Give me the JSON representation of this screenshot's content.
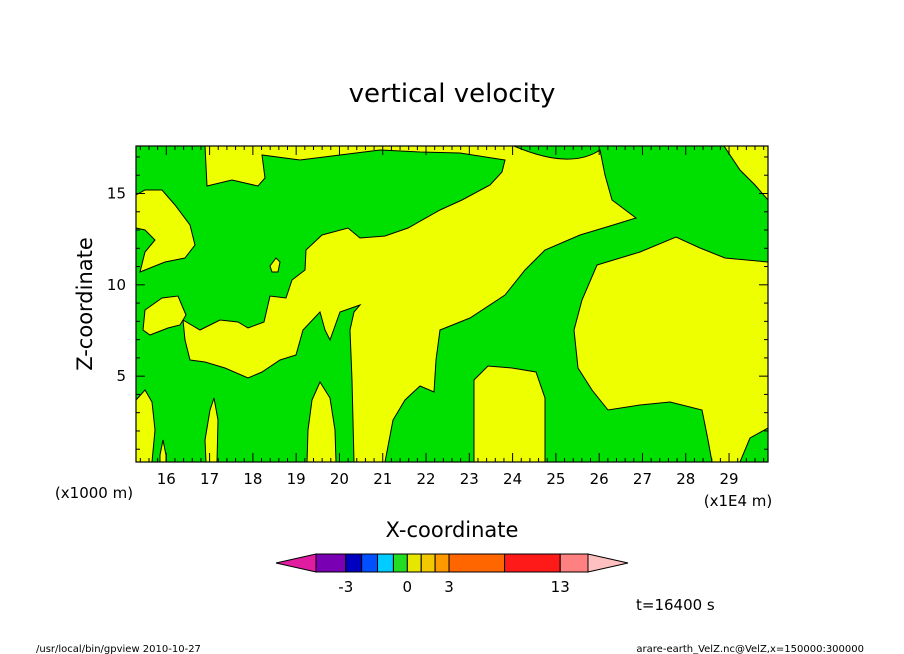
{
  "chart_data": {
    "type": "heatmap",
    "title": "vertical velocity",
    "xlabel": "X-coordinate",
    "ylabel": "Z-coordinate",
    "x_unit_label": "(x1E4 m)",
    "y_unit_label": "(x1000 m)",
    "xlim": [
      15.3,
      29.9
    ],
    "ylim": [
      0.3,
      17.6
    ],
    "x_ticks": [
      "16",
      "17",
      "18",
      "19",
      "20",
      "21",
      "22",
      "23",
      "24",
      "25",
      "26",
      "27",
      "28",
      "29"
    ],
    "y_ticks": [
      "5",
      "10",
      "15"
    ],
    "colorbar": {
      "colors": [
        "#e01ca0",
        "#7a00b4",
        "#0000c0",
        "#0050ff",
        "#00ccff",
        "#22dd22",
        "#e6e600",
        "#f2c800",
        "#ff9900",
        "#ff6600",
        "#ff1a1a",
        "#ff8080",
        "#ffc0c0"
      ],
      "labels": [
        "-3",
        "0",
        "3",
        "13"
      ],
      "label_values": [
        -3,
        0,
        3,
        13
      ]
    },
    "fields": {
      "background": "#00e000",
      "positive": "#eeff00"
    },
    "time_label": "t=16400 s"
  },
  "footer": {
    "left": "/usr/local/bin/gpview   2010-10-27",
    "right": "arare-earth_VelZ.nc@VelZ,x=150000:300000"
  }
}
